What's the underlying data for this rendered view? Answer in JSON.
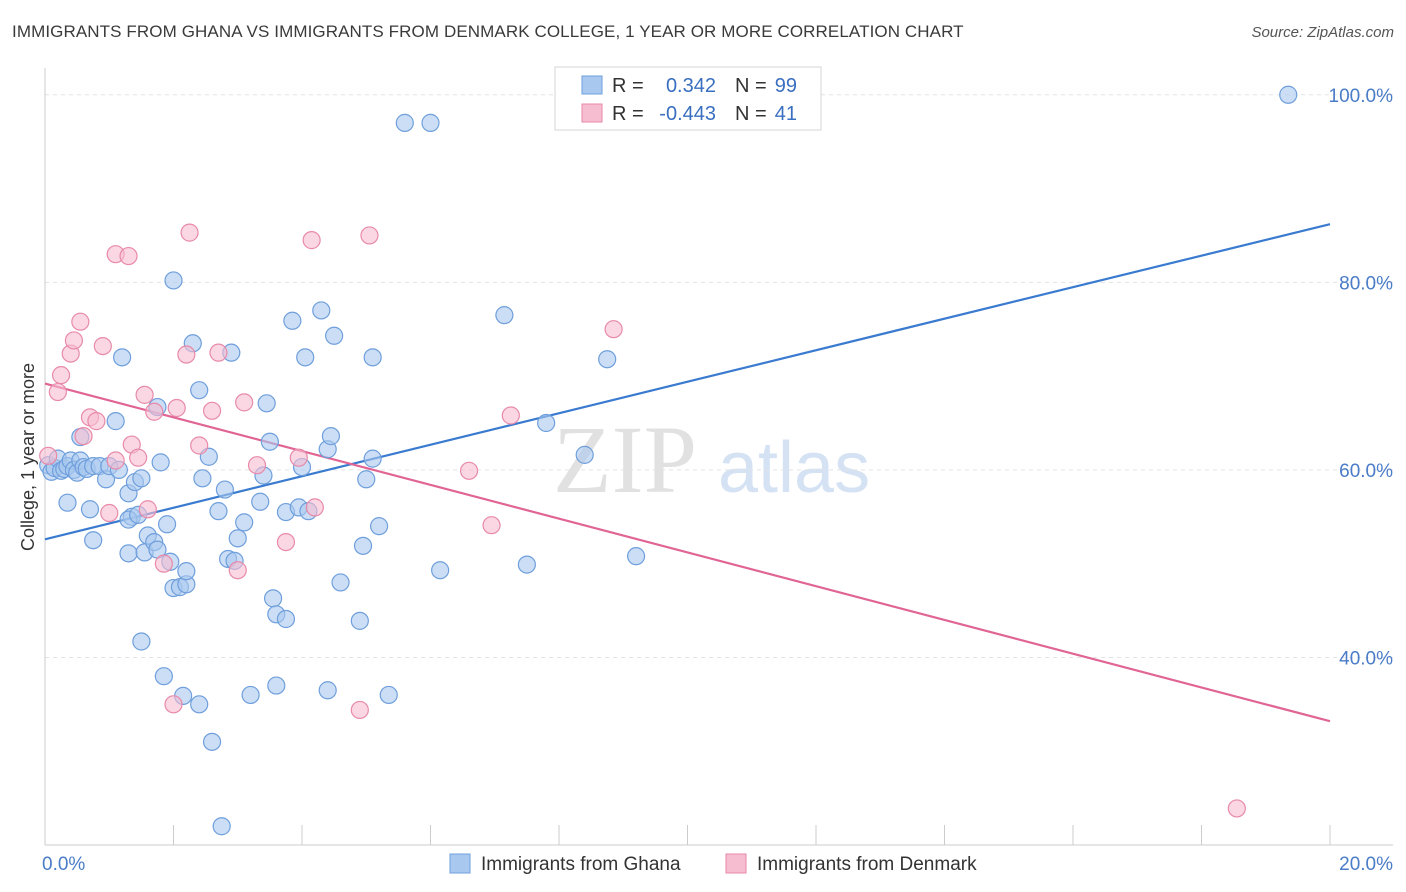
{
  "title": "IMMIGRANTS FROM GHANA VS IMMIGRANTS FROM DENMARK COLLEGE, 1 YEAR OR MORE CORRELATION CHART",
  "source": "Source: ZipAtlas.com",
  "watermark": {
    "zip": "ZIP",
    "atlas": "atlas"
  },
  "colors": {
    "ghana_fill": "#a9c8ef",
    "ghana_stroke": "#6f9fdc",
    "ghana_line": "#3a7bd0",
    "denmark_fill": "#f6bcd0",
    "denmark_stroke": "#e88aa9",
    "denmark_line": "#e06595",
    "tick_text": "#4a7cc7",
    "grid": "#e3e3e3"
  },
  "legend": {
    "r_label": "R =",
    "n_label": "N =",
    "ghana": {
      "r": "0.342",
      "n": "99"
    },
    "denmark": {
      "r": "-0.443",
      "n": "41"
    }
  },
  "chart_data": {
    "type": "scatter",
    "title": "IMMIGRANTS FROM GHANA VS IMMIGRANTS FROM DENMARK COLLEGE, 1 YEAR OR MORE CORRELATION CHART",
    "xlabel": "",
    "ylabel": "College, 1 year or more",
    "xlim": [
      0,
      20
    ],
    "ylim": [
      20,
      102
    ],
    "x_tick_labels": [
      "0.0%",
      "20.0%"
    ],
    "y_ticks": [
      40,
      60,
      80,
      100
    ],
    "y_tick_labels": [
      "40.0%",
      "60.0%",
      "80.0%",
      "100.0%"
    ],
    "grid": true,
    "legend_position": "top-center",
    "series": [
      {
        "name": "Immigrants from Ghana",
        "trend": {
          "x": [
            0,
            20
          ],
          "y": [
            52.6,
            86.2
          ]
        },
        "points": [
          [
            0.05,
            60.5
          ],
          [
            0.1,
            59.8
          ],
          [
            0.15,
            60.2
          ],
          [
            0.2,
            61.2
          ],
          [
            0.25,
            59.9
          ],
          [
            0.3,
            60.1
          ],
          [
            0.35,
            60.4
          ],
          [
            0.4,
            61.0
          ],
          [
            0.45,
            60.0
          ],
          [
            0.5,
            59.7
          ],
          [
            0.55,
            61.0
          ],
          [
            0.6,
            60.3
          ],
          [
            0.65,
            60.1
          ],
          [
            0.75,
            60.4
          ],
          [
            0.85,
            60.4
          ],
          [
            0.95,
            59.0
          ],
          [
            1.0,
            60.4
          ],
          [
            1.15,
            60.0
          ],
          [
            0.35,
            56.5
          ],
          [
            0.7,
            55.8
          ],
          [
            0.75,
            52.5
          ],
          [
            0.55,
            63.5
          ],
          [
            1.1,
            65.2
          ],
          [
            1.2,
            72.0
          ],
          [
            1.3,
            57.5
          ],
          [
            1.4,
            58.7
          ],
          [
            1.5,
            59.1
          ],
          [
            1.35,
            55.0
          ],
          [
            1.3,
            54.7
          ],
          [
            1.45,
            55.2
          ],
          [
            1.3,
            51.1
          ],
          [
            1.55,
            51.2
          ],
          [
            1.6,
            53.0
          ],
          [
            1.7,
            52.3
          ],
          [
            1.75,
            51.5
          ],
          [
            1.9,
            54.2
          ],
          [
            1.8,
            60.8
          ],
          [
            1.75,
            66.7
          ],
          [
            1.95,
            50.2
          ],
          [
            2.0,
            47.4
          ],
          [
            2.1,
            47.5
          ],
          [
            2.2,
            47.8
          ],
          [
            2.2,
            49.2
          ],
          [
            2.3,
            73.5
          ],
          [
            2.4,
            68.5
          ],
          [
            2.45,
            59.1
          ],
          [
            2.55,
            61.4
          ],
          [
            2.7,
            55.6
          ],
          [
            2.8,
            57.9
          ],
          [
            2.85,
            50.5
          ],
          [
            2.95,
            50.3
          ],
          [
            3.0,
            52.7
          ],
          [
            3.1,
            54.4
          ],
          [
            2.9,
            72.5
          ],
          [
            3.35,
            56.6
          ],
          [
            3.4,
            59.4
          ],
          [
            3.45,
            67.1
          ],
          [
            3.55,
            46.3
          ],
          [
            3.6,
            44.6
          ],
          [
            3.75,
            44.1
          ],
          [
            3.5,
            63.0
          ],
          [
            3.75,
            55.5
          ],
          [
            3.85,
            75.9
          ],
          [
            4.0,
            60.3
          ],
          [
            3.95,
            56.0
          ],
          [
            4.1,
            55.6
          ],
          [
            4.05,
            72.0
          ],
          [
            4.3,
            77.0
          ],
          [
            4.4,
            62.2
          ],
          [
            4.45,
            63.6
          ],
          [
            4.5,
            74.3
          ],
          [
            4.4,
            36.5
          ],
          [
            4.6,
            48.0
          ],
          [
            4.9,
            43.9
          ],
          [
            4.95,
            51.9
          ],
          [
            5.0,
            59.0
          ],
          [
            5.1,
            61.2
          ],
          [
            5.2,
            54.0
          ],
          [
            5.1,
            72.0
          ],
          [
            5.35,
            36.0
          ],
          [
            2.0,
            80.2
          ],
          [
            5.6,
            97.0
          ],
          [
            6.0,
            97.0
          ],
          [
            1.85,
            38.0
          ],
          [
            2.15,
            35.9
          ],
          [
            2.4,
            35.0
          ],
          [
            2.6,
            31.0
          ],
          [
            3.2,
            36.0
          ],
          [
            3.6,
            37.0
          ],
          [
            6.15,
            49.3
          ],
          [
            7.15,
            76.5
          ],
          [
            7.5,
            49.9
          ],
          [
            7.8,
            65.0
          ],
          [
            8.4,
            61.6
          ],
          [
            8.75,
            71.8
          ],
          [
            9.2,
            50.8
          ],
          [
            19.35,
            100.0
          ],
          [
            2.75,
            22.0
          ],
          [
            1.5,
            41.7
          ]
        ]
      },
      {
        "name": "Immigrants from Denmark",
        "trend": {
          "x": [
            0,
            20
          ],
          "y": [
            69.2,
            33.2
          ]
        },
        "points": [
          [
            0.05,
            61.5
          ],
          [
            0.2,
            68.3
          ],
          [
            0.25,
            70.1
          ],
          [
            0.4,
            72.4
          ],
          [
            0.45,
            73.8
          ],
          [
            0.55,
            75.8
          ],
          [
            0.6,
            63.6
          ],
          [
            0.7,
            65.6
          ],
          [
            0.8,
            65.2
          ],
          [
            0.9,
            73.2
          ],
          [
            1.0,
            55.4
          ],
          [
            1.1,
            61.0
          ],
          [
            1.1,
            83.0
          ],
          [
            1.3,
            82.8
          ],
          [
            1.35,
            62.7
          ],
          [
            1.45,
            61.3
          ],
          [
            1.55,
            68.0
          ],
          [
            1.6,
            55.8
          ],
          [
            1.7,
            66.2
          ],
          [
            1.85,
            50.0
          ],
          [
            2.05,
            66.6
          ],
          [
            2.2,
            72.3
          ],
          [
            2.25,
            85.3
          ],
          [
            2.4,
            62.6
          ],
          [
            2.6,
            66.3
          ],
          [
            2.7,
            72.5
          ],
          [
            3.0,
            49.3
          ],
          [
            3.1,
            67.2
          ],
          [
            3.3,
            60.5
          ],
          [
            3.75,
            52.3
          ],
          [
            3.95,
            61.3
          ],
          [
            4.15,
            84.5
          ],
          [
            4.2,
            56.0
          ],
          [
            4.9,
            34.4
          ],
          [
            5.05,
            85.0
          ],
          [
            6.6,
            59.9
          ],
          [
            6.95,
            54.1
          ],
          [
            7.25,
            65.8
          ],
          [
            8.85,
            75.0
          ],
          [
            18.55,
            23.9
          ],
          [
            2.0,
            35.0
          ]
        ]
      }
    ]
  },
  "bottom_legend": {
    "ghana": "Immigrants from Ghana",
    "denmark": "Immigrants from Denmark"
  }
}
